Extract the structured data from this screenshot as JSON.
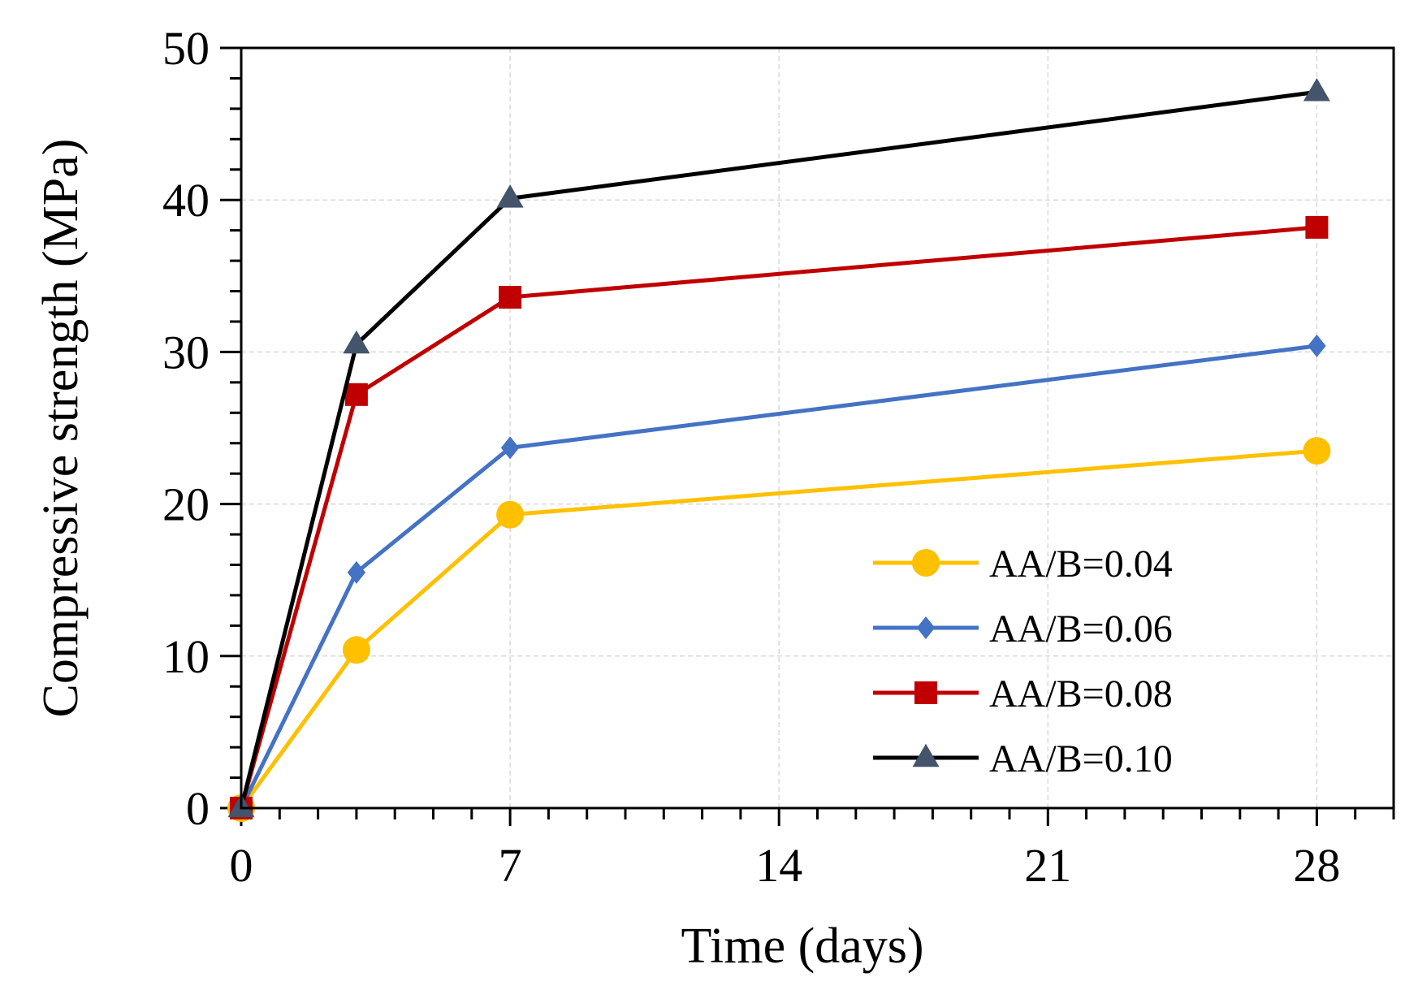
{
  "chart_data": {
    "type": "line",
    "xlabel": "Time (days)",
    "ylabel": "Compressive strength (MPa)",
    "xlim": [
      0,
      30
    ],
    "ylim": [
      0,
      50
    ],
    "xticks": [
      0,
      7,
      14,
      21,
      28
    ],
    "yticks": [
      0,
      10,
      20,
      30,
      40,
      50
    ],
    "grid": true,
    "legend_position": "bottom-right",
    "x": [
      0,
      3,
      7,
      28
    ],
    "series": [
      {
        "name": "AA/B=0.04",
        "values": [
          0,
          10.4,
          19.3,
          23.5
        ],
        "color": "#FFC000",
        "marker": "circle"
      },
      {
        "name": "AA/B=0.06",
        "values": [
          0,
          15.5,
          23.7,
          30.4
        ],
        "color": "#4472C4",
        "marker": "diamond"
      },
      {
        "name": "AA/B=0.08",
        "values": [
          0,
          27.2,
          33.6,
          38.2
        ],
        "color": "#C00000",
        "marker": "square"
      },
      {
        "name": "AA/B=0.10",
        "values": [
          0,
          30.5,
          40.1,
          47.1
        ],
        "color": "#000000",
        "marker": "triangle",
        "marker_color": "#44546A"
      }
    ]
  }
}
